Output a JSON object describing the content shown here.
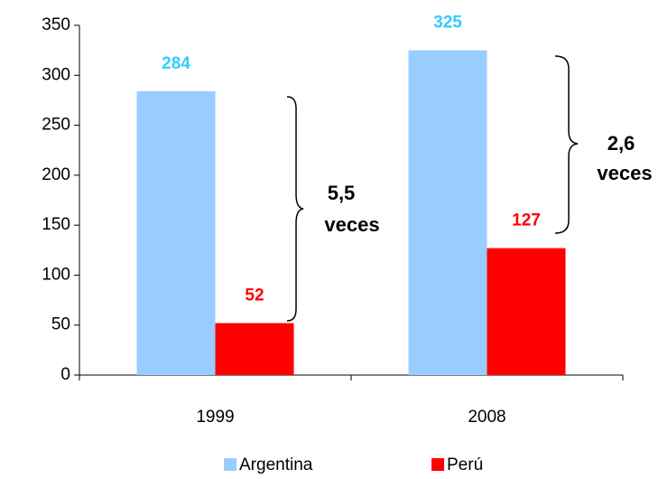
{
  "chart_data": {
    "type": "bar",
    "categories": [
      "1999",
      "2008"
    ],
    "series": [
      {
        "name": "Argentina",
        "color": "#99ccff",
        "label_color": "#33ccff",
        "values": [
          284,
          325
        ]
      },
      {
        "name": "Perú",
        "color": "#ff0000",
        "label_color": "#ff0000",
        "values": [
          52,
          127
        ]
      }
    ],
    "ylim": [
      0,
      350
    ],
    "yticks": [
      0,
      50,
      100,
      150,
      200,
      250,
      300,
      350
    ],
    "legend": "bottom",
    "annotations": [
      {
        "lines": [
          "5,5",
          "veces"
        ]
      },
      {
        "lines": [
          "2,6",
          "veces"
        ]
      }
    ]
  }
}
